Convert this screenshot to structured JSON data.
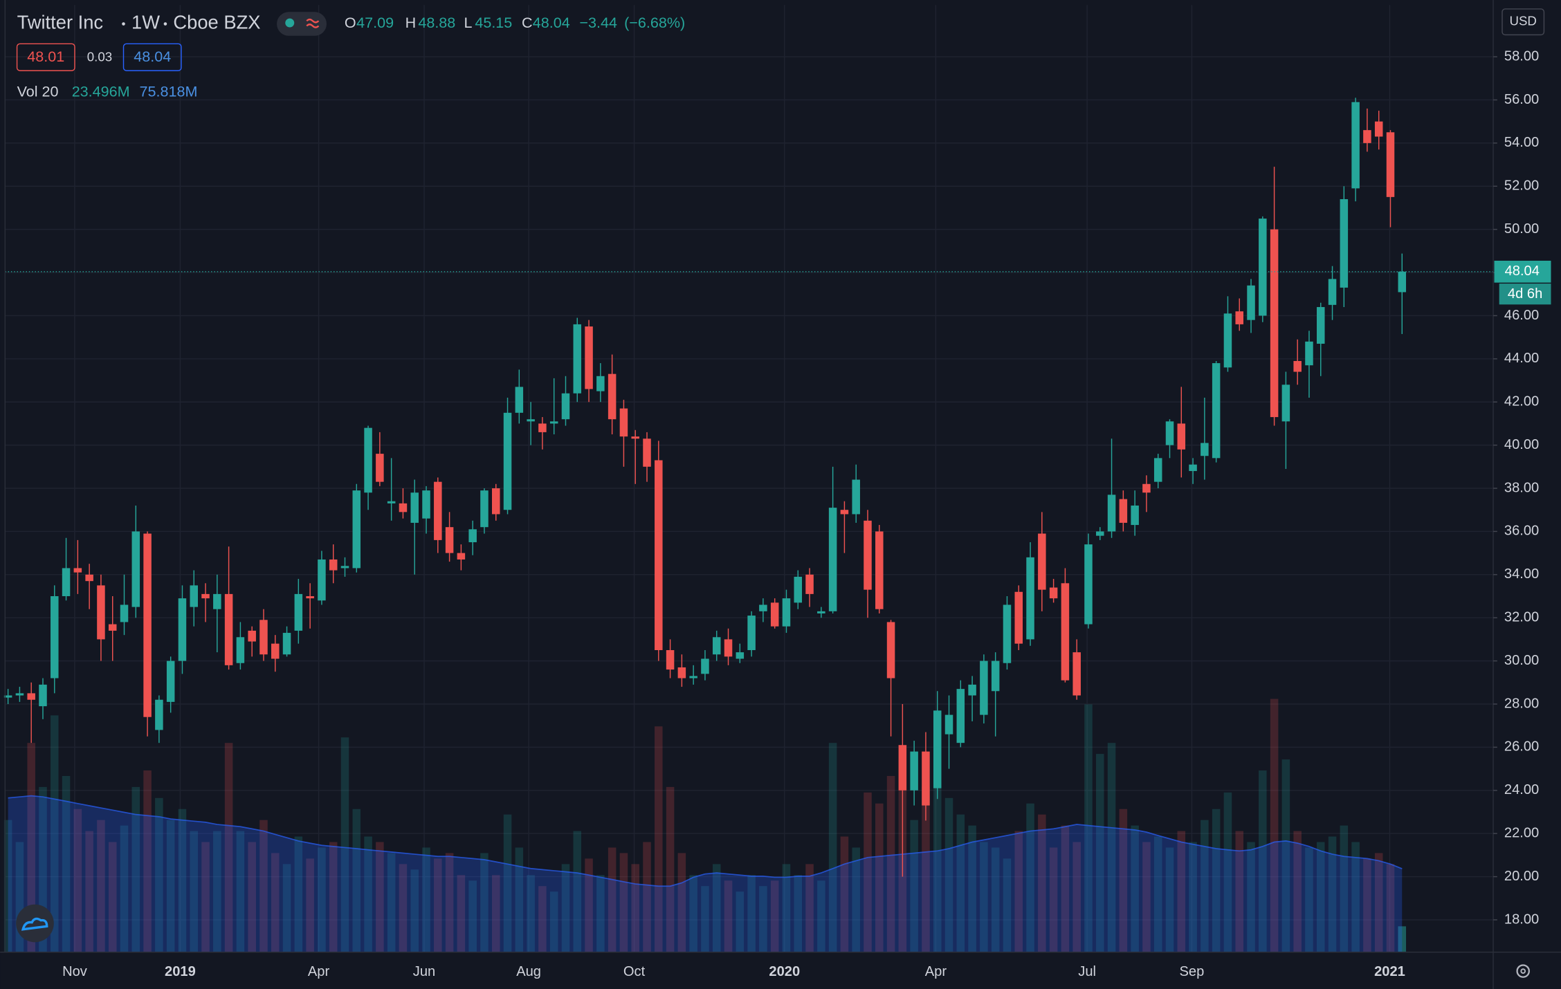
{
  "chart_data": {
    "type": "candlestick",
    "symbol": "Twitter Inc",
    "interval": "1W",
    "exchange": "Cboe BZX",
    "currency": "USD",
    "countdown": "4d 6h",
    "quote": {
      "bid": 48.01,
      "spread": 0.03,
      "ask": 48.04
    },
    "ohlc_letters": [
      "O",
      "H",
      "L",
      "C"
    ],
    "change": {
      "value": -3.44,
      "label": "−3.44"
    },
    "change_percent": {
      "value": -6.68,
      "label": "(−6.68%)"
    },
    "volume_label": "Vol 20",
    "up_color": "#26a69a",
    "down_color": "#ef5350",
    "ma_color": "#2962ff",
    "grid": true,
    "ylim": [
      16.5,
      60.4
    ],
    "yticks": [
      {
        "value": 18,
        "label": "18.00"
      },
      {
        "value": 20,
        "label": "20.00"
      },
      {
        "value": 22,
        "label": "22.00"
      },
      {
        "value": 24,
        "label": "24.00"
      },
      {
        "value": 26,
        "label": "26.00"
      },
      {
        "value": 28,
        "label": "28.00"
      },
      {
        "value": 30,
        "label": "30.00"
      },
      {
        "value": 32,
        "label": "32.00"
      },
      {
        "value": 34,
        "label": "34.00"
      },
      {
        "value": 36,
        "label": "36.00"
      },
      {
        "value": 38,
        "label": "38.00"
      },
      {
        "value": 40,
        "label": "40.00"
      },
      {
        "value": 42,
        "label": "42.00"
      },
      {
        "value": 44,
        "label": "44.00"
      },
      {
        "value": 46,
        "label": "46.00"
      },
      {
        "value": 48,
        "label": "48.00"
      },
      {
        "value": 50,
        "label": "50.00"
      },
      {
        "value": 52,
        "label": "52.00"
      },
      {
        "value": 54,
        "label": "54.00"
      },
      {
        "value": 56,
        "label": "56.00"
      },
      {
        "value": 58,
        "label": "58.00"
      }
    ],
    "xlim": [
      -0.5,
      128
    ],
    "xticks": [
      {
        "value": 5.74,
        "label": "Nov"
      },
      {
        "value": 14.82,
        "label": "2019"
      },
      {
        "value": 26.74,
        "label": "Apr"
      },
      {
        "value": 35.82,
        "label": "Jun"
      },
      {
        "value": 44.82,
        "label": "Aug"
      },
      {
        "value": 53.9,
        "label": "Oct"
      },
      {
        "value": 66.84,
        "label": "2020"
      },
      {
        "value": 79.86,
        "label": "Apr"
      },
      {
        "value": 92.89,
        "label": "Jul"
      },
      {
        "value": 101.9,
        "label": "Sep"
      },
      {
        "value": 118.94,
        "label": "2021"
      }
    ],
    "vlim": [
      0,
      860
    ],
    "candles": {
      "open": [
        28.3,
        28.4,
        28.5,
        27.9,
        29.2,
        33.0,
        34.3,
        34.0,
        33.5,
        31.7,
        31.8,
        32.5,
        35.9,
        26.8,
        28.1,
        30.0,
        32.5,
        33.1,
        32.4,
        33.1,
        29.9,
        31.4,
        31.9,
        30.8,
        30.3,
        31.4,
        33.0,
        32.8,
        34.7,
        34.3,
        34.3,
        37.8,
        39.6,
        37.3,
        37.3,
        36.4,
        36.6,
        38.3,
        36.2,
        35.0,
        35.5,
        36.2,
        38.0,
        37.0,
        41.5,
        41.1,
        41.0,
        41.0,
        41.2,
        42.4,
        45.5,
        42.5,
        43.3,
        41.7,
        40.4,
        40.3,
        39.3,
        30.5,
        29.7,
        29.2,
        29.4,
        30.3,
        31.0,
        30.1,
        30.5,
        32.3,
        32.7,
        31.6,
        32.7,
        34.0,
        32.2,
        32.3,
        37.0,
        36.8,
        36.5,
        36.0,
        31.8,
        26.1,
        24.0,
        25.8,
        24.1,
        26.6,
        26.2,
        28.4,
        27.5,
        28.6,
        29.9,
        33.2,
        31.0,
        35.9,
        33.4,
        33.6,
        30.4,
        31.7,
        35.8,
        36.0,
        37.5,
        36.3,
        38.2,
        38.3,
        40.0,
        41.0,
        38.8,
        39.5,
        39.4,
        43.6,
        46.2,
        45.8,
        46.0,
        50.0,
        41.1,
        43.9,
        43.7,
        44.7,
        46.5,
        47.3,
        51.9,
        54.6,
        55.0,
        54.5,
        47.09
      ],
      "high": [
        28.7,
        28.8,
        29.0,
        29.2,
        33.5,
        35.7,
        35.6,
        34.5,
        34.0,
        33.0,
        34.0,
        37.2,
        36.0,
        28.4,
        30.2,
        33.5,
        34.2,
        33.6,
        34.0,
        35.3,
        31.8,
        31.6,
        32.4,
        31.2,
        31.6,
        33.8,
        33.6,
        35.1,
        35.4,
        34.8,
        38.2,
        40.9,
        40.6,
        39.4,
        38.0,
        38.4,
        38.1,
        38.5,
        36.9,
        35.4,
        36.5,
        38.0,
        38.2,
        42.2,
        43.5,
        42.0,
        41.3,
        43.1,
        43.2,
        45.9,
        45.8,
        43.8,
        44.2,
        42.1,
        40.7,
        40.6,
        40.2,
        31.0,
        30.3,
        29.8,
        30.5,
        31.4,
        31.5,
        30.8,
        32.3,
        32.9,
        32.9,
        33.3,
        34.2,
        34.3,
        32.5,
        39.0,
        37.4,
        39.1,
        37.0,
        36.3,
        31.9,
        28.0,
        26.3,
        26.7,
        28.6,
        28.4,
        29.1,
        29.3,
        30.3,
        30.4,
        33.0,
        33.5,
        35.5,
        36.9,
        33.8,
        34.3,
        31.0,
        35.9,
        36.2,
        40.3,
        37.9,
        37.9,
        38.6,
        39.6,
        41.2,
        42.7,
        39.4,
        42.2,
        43.9,
        46.9,
        46.8,
        47.7,
        50.6,
        52.9,
        43.4,
        44.9,
        45.3,
        46.6,
        48.3,
        52.0,
        56.1,
        55.6,
        55.5,
        54.6,
        48.88
      ],
      "low": [
        28.0,
        28.1,
        26.2,
        27.3,
        28.5,
        32.8,
        33.1,
        32.4,
        30.0,
        30.0,
        31.2,
        32.0,
        26.5,
        26.2,
        27.6,
        29.4,
        31.6,
        31.8,
        30.4,
        29.6,
        29.6,
        30.2,
        30.0,
        29.5,
        30.2,
        30.8,
        31.5,
        32.6,
        33.6,
        33.9,
        34.1,
        37.0,
        38.1,
        36.5,
        36.6,
        34.0,
        35.9,
        35.0,
        34.6,
        34.2,
        34.9,
        35.9,
        36.5,
        36.8,
        41.0,
        40.0,
        39.8,
        40.5,
        40.9,
        42.0,
        42.0,
        42.0,
        40.5,
        39.0,
        38.2,
        38.3,
        30.0,
        29.2,
        28.8,
        28.9,
        29.1,
        30.0,
        29.8,
        29.9,
        30.2,
        31.8,
        31.5,
        31.3,
        32.4,
        32.5,
        32.0,
        32.2,
        35.0,
        36.4,
        32.0,
        32.2,
        26.5,
        20.0,
        23.3,
        22.6,
        23.6,
        25.0,
        26.0,
        27.2,
        27.1,
        26.5,
        29.6,
        30.5,
        30.7,
        32.3,
        32.7,
        29.0,
        28.2,
        31.5,
        35.6,
        35.7,
        36.0,
        35.8,
        36.9,
        38.0,
        39.4,
        38.5,
        38.2,
        38.4,
        39.2,
        43.4,
        45.3,
        45.2,
        45.7,
        40.9,
        38.9,
        42.8,
        42.2,
        43.2,
        45.8,
        46.4,
        51.3,
        53.6,
        53.7,
        50.1,
        45.15
      ],
      "close": [
        28.4,
        28.5,
        28.2,
        28.9,
        33.0,
        34.3,
        34.1,
        33.7,
        31.0,
        31.4,
        32.6,
        36.0,
        27.4,
        28.2,
        30.0,
        32.9,
        33.5,
        32.9,
        33.1,
        29.8,
        31.1,
        30.9,
        30.3,
        30.1,
        31.3,
        33.1,
        32.9,
        34.7,
        34.2,
        34.4,
        37.9,
        40.8,
        38.3,
        37.4,
        36.9,
        37.8,
        37.9,
        35.6,
        35.0,
        34.7,
        36.1,
        37.9,
        36.8,
        41.5,
        42.7,
        41.2,
        40.6,
        41.1,
        42.4,
        45.6,
        42.6,
        43.2,
        41.2,
        40.4,
        40.3,
        39.0,
        30.5,
        29.6,
        29.2,
        29.3,
        30.1,
        31.1,
        30.2,
        30.4,
        32.1,
        32.6,
        31.6,
        32.9,
        33.9,
        33.1,
        32.3,
        37.1,
        36.8,
        38.4,
        33.3,
        32.4,
        29.2,
        24.0,
        25.8,
        23.3,
        27.7,
        27.5,
        28.7,
        28.9,
        30.0,
        30.0,
        32.6,
        30.8,
        34.8,
        33.3,
        32.9,
        29.1,
        28.4,
        35.4,
        36.0,
        37.7,
        36.4,
        37.2,
        37.8,
        39.4,
        41.1,
        39.8,
        39.1,
        40.1,
        43.8,
        46.1,
        45.6,
        47.4,
        50.5,
        41.3,
        42.8,
        43.4,
        44.8,
        46.4,
        47.7,
        51.4,
        55.9,
        54.0,
        54.3,
        51.5,
        48.04
      ]
    },
    "volume": {
      "values": [
        120,
        100,
        190,
        150,
        215,
        160,
        130,
        110,
        120,
        100,
        115,
        150,
        165,
        140,
        120,
        130,
        110,
        100,
        110,
        190,
        110,
        100,
        120,
        90,
        80,
        105,
        85,
        95,
        100,
        195,
        130,
        105,
        100,
        90,
        80,
        75,
        95,
        85,
        90,
        70,
        65,
        90,
        70,
        125,
        95,
        70,
        60,
        55,
        80,
        110,
        85,
        70,
        95,
        90,
        80,
        100,
        205,
        150,
        90,
        70,
        60,
        80,
        65,
        55,
        70,
        60,
        65,
        80,
        70,
        80,
        65,
        190,
        105,
        95,
        145,
        135,
        160,
        175,
        120,
        150,
        180,
        140,
        125,
        115,
        100,
        95,
        85,
        110,
        135,
        125,
        95,
        115,
        100,
        225,
        180,
        190,
        130,
        115,
        100,
        105,
        95,
        110,
        100,
        120,
        130,
        145,
        110,
        100,
        165,
        230,
        175,
        110,
        95,
        100,
        105,
        115,
        100,
        85,
        90,
        80,
        23.496
      ],
      "value_labels": [
        null,
        null,
        null,
        null,
        null,
        null,
        null,
        null,
        null,
        null,
        null,
        null,
        null,
        null,
        null,
        null,
        null,
        null,
        null,
        null,
        null,
        null,
        null,
        null,
        null,
        null,
        null,
        null,
        null,
        null,
        null,
        null,
        null,
        null,
        null,
        null,
        null,
        null,
        null,
        null,
        null,
        null,
        null,
        null,
        null,
        null,
        null,
        null,
        null,
        null,
        null,
        null,
        null,
        null,
        null,
        null,
        null,
        null,
        null,
        null,
        null,
        null,
        null,
        null,
        null,
        null,
        null,
        null,
        null,
        null,
        null,
        null,
        null,
        null,
        null,
        null,
        null,
        null,
        null,
        null,
        null,
        null,
        null,
        null,
        null,
        null,
        null,
        null,
        null,
        null,
        null,
        null,
        null,
        null,
        null,
        null,
        null,
        null,
        null,
        null,
        null,
        null,
        null,
        null,
        null,
        null,
        null,
        null,
        null,
        null,
        null,
        null,
        null,
        null,
        null,
        null,
        null,
        null,
        null,
        null,
        "23.496M"
      ]
    },
    "volume_ma": {
      "values": [
        140,
        141,
        142,
        141,
        139,
        137,
        135,
        133,
        131,
        129,
        127,
        125,
        124,
        123,
        121,
        120,
        119,
        118,
        116,
        115,
        114,
        112,
        110,
        107,
        104,
        101,
        99,
        97,
        96,
        95,
        94,
        93,
        92,
        91,
        90,
        89,
        88,
        87,
        87,
        86,
        85,
        84,
        82,
        80,
        78,
        76,
        75,
        74,
        73,
        72,
        70,
        68,
        66,
        64,
        62,
        61,
        60,
        60,
        63,
        68,
        71,
        72,
        71,
        70,
        69,
        69,
        68,
        68,
        69,
        69,
        72,
        76,
        80,
        83,
        86,
        87,
        88,
        89,
        90,
        91,
        92,
        94,
        97,
        100,
        102,
        104,
        106,
        108,
        110,
        111,
        112,
        114,
        116,
        115,
        114,
        113,
        112,
        111,
        109,
        106,
        103,
        100,
        98,
        96,
        94,
        93,
        92,
        93,
        96,
        100,
        101,
        99,
        96,
        92,
        89,
        87,
        86,
        85,
        83,
        80,
        75.818
      ],
      "value_labels": [
        null,
        null,
        null,
        null,
        null,
        null,
        null,
        null,
        null,
        null,
        null,
        null,
        null,
        null,
        null,
        null,
        null,
        null,
        null,
        null,
        null,
        null,
        null,
        null,
        null,
        null,
        null,
        null,
        null,
        null,
        null,
        null,
        null,
        null,
        null,
        null,
        null,
        null,
        null,
        null,
        null,
        null,
        null,
        null,
        null,
        null,
        null,
        null,
        null,
        null,
        null,
        null,
        null,
        null,
        null,
        null,
        null,
        null,
        null,
        null,
        null,
        null,
        null,
        null,
        null,
        null,
        null,
        null,
        null,
        null,
        null,
        null,
        null,
        null,
        null,
        null,
        null,
        null,
        null,
        null,
        null,
        null,
        null,
        null,
        null,
        null,
        null,
        null,
        null,
        null,
        null,
        null,
        null,
        null,
        null,
        null,
        null,
        null,
        null,
        null,
        null,
        null,
        null,
        null,
        null,
        null,
        null,
        null,
        null,
        null,
        null,
        null,
        null,
        null,
        null,
        null,
        null,
        null,
        null,
        null,
        "75.818M"
      ]
    }
  }
}
